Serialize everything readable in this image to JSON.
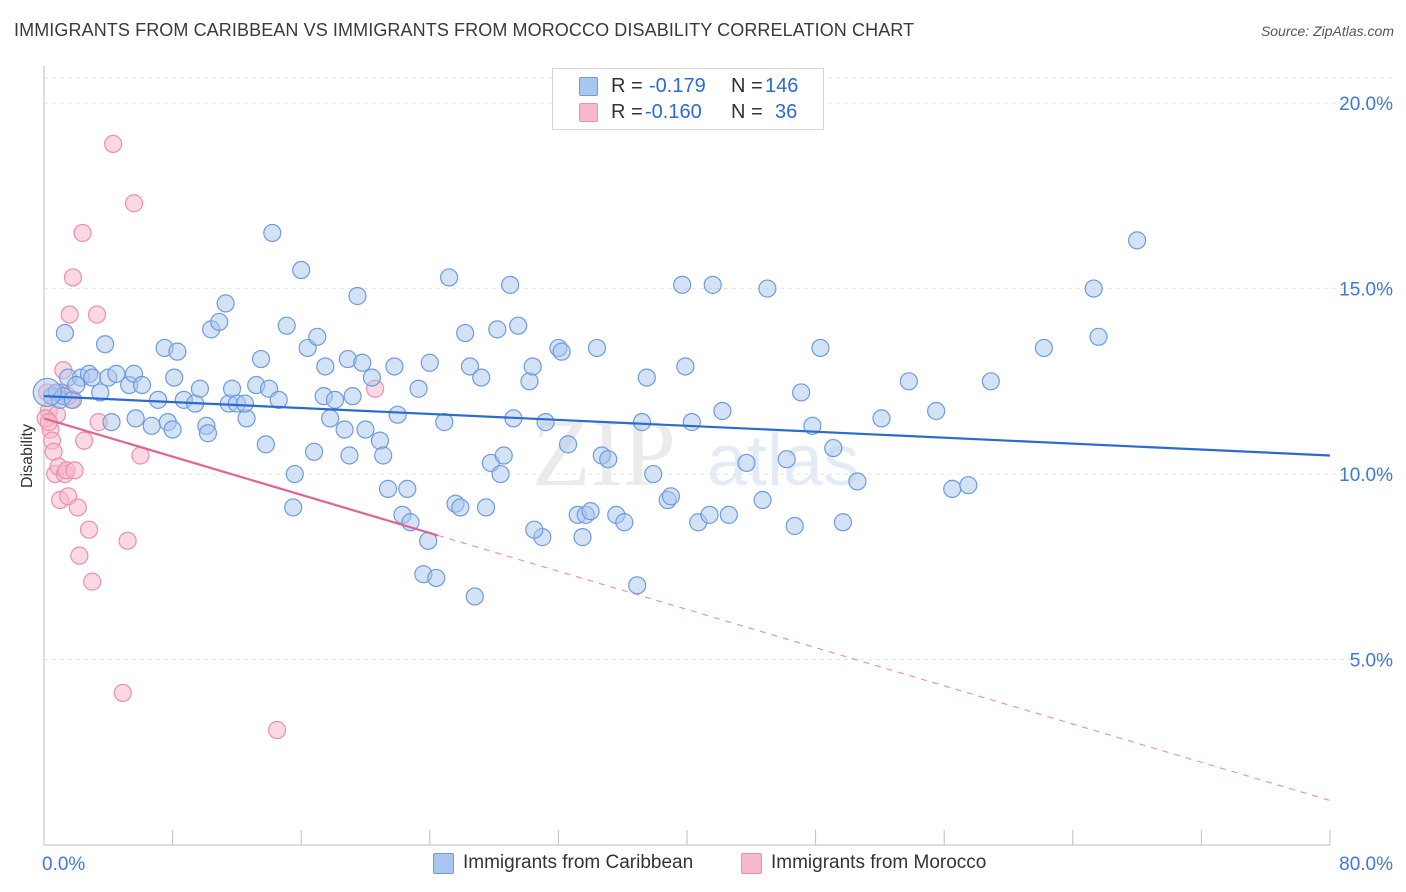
{
  "title": "IMMIGRANTS FROM CARIBBEAN VS IMMIGRANTS FROM MOROCCO DISABILITY CORRELATION CHART",
  "source": "Source: ZipAtlas.com",
  "watermark": {
    "zip": "ZIP",
    "atlas": "atlas"
  },
  "legend": {
    "r_label": "R =",
    "n_label": "N =",
    "rows": [
      {
        "r": "-0.179",
        "n": "146"
      },
      {
        "r": "-0.160",
        "n": "36"
      }
    ]
  },
  "colors": {
    "caribbean_fill": "#a9c6ee",
    "caribbean_stroke": "#6d9be0",
    "caribbean_line": "#2a6bd1",
    "morocco_fill": "#f7b8ca",
    "morocco_stroke": "#ec8fae",
    "morocco_line": "#e0658f",
    "tick_text": "#3f78d6"
  },
  "chart_data": {
    "type": "scatter",
    "title": "IMMIGRANTS FROM CARIBBEAN VS IMMIGRANTS FROM MOROCCO DISABILITY CORRELATION CHART",
    "xlabel": "",
    "ylabel": "Disability",
    "xlim": [
      0,
      80
    ],
    "ylim": [
      0,
      21
    ],
    "x_tick_labels": [
      "0.0%",
      "80.0%"
    ],
    "y_ticks": [
      5,
      10,
      15,
      20
    ],
    "y_tick_labels": [
      "5.0%",
      "10.0%",
      "15.0%",
      "20.0%"
    ],
    "grid": "horizontal dashed",
    "legend_position": "top-center",
    "series": [
      {
        "name": "Immigrants from Caribbean",
        "r": -0.179,
        "n": 146,
        "trend": {
          "x": [
            0,
            80
          ],
          "y": [
            12.1,
            10.5
          ],
          "style": "solid"
        },
        "points": [
          [
            0.5,
            12.1
          ],
          [
            0.8,
            12.2
          ],
          [
            1.0,
            12.0
          ],
          [
            1.2,
            12.1
          ],
          [
            1.5,
            12.6
          ],
          [
            1.8,
            12.0
          ],
          [
            2.3,
            12.6
          ],
          [
            2.8,
            12.7
          ],
          [
            3.0,
            12.6
          ],
          [
            1.3,
            13.8
          ],
          [
            4.0,
            12.6
          ],
          [
            4.5,
            12.7
          ],
          [
            3.8,
            13.5
          ],
          [
            4.2,
            11.4
          ],
          [
            5.3,
            12.4
          ],
          [
            5.6,
            12.7
          ],
          [
            6.1,
            12.4
          ],
          [
            5.7,
            11.5
          ],
          [
            6.7,
            11.3
          ],
          [
            7.1,
            12.0
          ],
          [
            7.5,
            13.4
          ],
          [
            7.7,
            11.4
          ],
          [
            8.1,
            12.6
          ],
          [
            8.3,
            13.3
          ],
          [
            8.7,
            12.0
          ],
          [
            9.4,
            11.9
          ],
          [
            9.7,
            12.3
          ],
          [
            10.1,
            11.3
          ],
          [
            10.2,
            11.1
          ],
          [
            10.4,
            13.9
          ],
          [
            10.9,
            14.1
          ],
          [
            11.3,
            14.6
          ],
          [
            11.5,
            11.9
          ],
          [
            11.7,
            12.3
          ],
          [
            12.0,
            11.9
          ],
          [
            12.6,
            11.5
          ],
          [
            13.2,
            12.4
          ],
          [
            13.5,
            13.1
          ],
          [
            13.8,
            10.8
          ],
          [
            14.0,
            12.3
          ],
          [
            14.2,
            16.5
          ],
          [
            14.6,
            12.0
          ],
          [
            15.1,
            14.0
          ],
          [
            15.5,
            9.1
          ],
          [
            15.6,
            10.0
          ],
          [
            16.0,
            15.5
          ],
          [
            16.4,
            13.4
          ],
          [
            16.8,
            10.6
          ],
          [
            17.0,
            13.7
          ],
          [
            17.4,
            12.1
          ],
          [
            17.5,
            12.9
          ],
          [
            17.8,
            11.5
          ],
          [
            18.1,
            12.0
          ],
          [
            18.7,
            11.2
          ],
          [
            18.9,
            13.1
          ],
          [
            19.2,
            12.1
          ],
          [
            19.5,
            14.8
          ],
          [
            19.8,
            13.0
          ],
          [
            20.0,
            11.2
          ],
          [
            20.4,
            12.6
          ],
          [
            20.9,
            10.9
          ],
          [
            21.1,
            10.5
          ],
          [
            21.4,
            9.6
          ],
          [
            21.8,
            12.9
          ],
          [
            22.0,
            11.6
          ],
          [
            22.3,
            8.9
          ],
          [
            22.6,
            9.6
          ],
          [
            22.8,
            8.7
          ],
          [
            23.3,
            12.3
          ],
          [
            23.6,
            7.3
          ],
          [
            23.9,
            8.2
          ],
          [
            24.4,
            7.2
          ],
          [
            24.9,
            11.4
          ],
          [
            25.2,
            15.3
          ],
          [
            25.6,
            9.2
          ],
          [
            25.9,
            9.1
          ],
          [
            26.2,
            13.8
          ],
          [
            26.5,
            12.9
          ],
          [
            26.8,
            6.7
          ],
          [
            27.2,
            12.6
          ],
          [
            27.5,
            9.1
          ],
          [
            27.8,
            10.3
          ],
          [
            28.2,
            13.9
          ],
          [
            28.4,
            10.0
          ],
          [
            28.6,
            10.5
          ],
          [
            29.0,
            15.1
          ],
          [
            29.2,
            11.5
          ],
          [
            29.5,
            14.0
          ],
          [
            30.2,
            12.5
          ],
          [
            30.4,
            12.9
          ],
          [
            31.0,
            8.3
          ],
          [
            31.2,
            11.4
          ],
          [
            32.0,
            13.4
          ],
          [
            32.2,
            13.3
          ],
          [
            32.6,
            10.8
          ],
          [
            33.2,
            8.9
          ],
          [
            33.5,
            8.3
          ],
          [
            33.7,
            8.9
          ],
          [
            34.4,
            13.4
          ],
          [
            34.7,
            10.5
          ],
          [
            35.1,
            10.4
          ],
          [
            35.6,
            8.9
          ],
          [
            36.1,
            8.7
          ],
          [
            36.9,
            7.0
          ],
          [
            37.2,
            11.4
          ],
          [
            37.5,
            12.6
          ],
          [
            37.9,
            10.0
          ],
          [
            38.8,
            9.3
          ],
          [
            39.7,
            15.1
          ],
          [
            39.9,
            12.9
          ],
          [
            40.3,
            11.4
          ],
          [
            40.7,
            8.7
          ],
          [
            41.4,
            8.9
          ],
          [
            42.2,
            11.7
          ],
          [
            42.6,
            8.9
          ],
          [
            43.7,
            10.3
          ],
          [
            44.7,
            9.3
          ],
          [
            46.2,
            10.4
          ],
          [
            46.7,
            8.6
          ],
          [
            47.1,
            12.2
          ],
          [
            47.8,
            11.3
          ],
          [
            48.3,
            13.4
          ],
          [
            49.1,
            10.7
          ],
          [
            49.7,
            8.7
          ],
          [
            50.6,
            9.8
          ],
          [
            52.1,
            11.5
          ],
          [
            53.8,
            12.5
          ],
          [
            55.5,
            11.7
          ],
          [
            56.5,
            9.6
          ],
          [
            57.5,
            9.7
          ],
          [
            58.9,
            12.5
          ],
          [
            62.2,
            13.4
          ],
          [
            65.3,
            15.0
          ],
          [
            65.6,
            13.7
          ],
          [
            68.0,
            16.3
          ],
          [
            45.0,
            15.0
          ],
          [
            41.6,
            15.1
          ],
          [
            39.0,
            9.4
          ],
          [
            34.0,
            9.0
          ],
          [
            30.5,
            8.5
          ],
          [
            24.0,
            13.0
          ],
          [
            19.0,
            10.5
          ],
          [
            12.5,
            11.9
          ],
          [
            8.0,
            11.2
          ],
          [
            3.5,
            12.2
          ],
          [
            2.0,
            12.4
          ]
        ]
      },
      {
        "name": "Immigrants from Morocco",
        "r": -0.16,
        "n": 36,
        "trend": {
          "x": [
            0,
            80
          ],
          "y": [
            11.5,
            1.2
          ],
          "solid_until_x": 24.5,
          "style": "solid-then-dashed"
        },
        "points": [
          [
            0.2,
            12.2
          ],
          [
            0.3,
            11.7
          ],
          [
            0.4,
            11.2
          ],
          [
            0.5,
            10.9
          ],
          [
            0.6,
            10.6
          ],
          [
            0.7,
            10.0
          ],
          [
            0.8,
            11.6
          ],
          [
            0.9,
            10.2
          ],
          [
            1.0,
            9.3
          ],
          [
            1.1,
            12.2
          ],
          [
            1.2,
            12.8
          ],
          [
            1.3,
            10.0
          ],
          [
            1.4,
            10.1
          ],
          [
            1.5,
            9.4
          ],
          [
            1.6,
            14.3
          ],
          [
            1.7,
            12.0
          ],
          [
            1.8,
            15.3
          ],
          [
            1.9,
            10.1
          ],
          [
            2.1,
            9.1
          ],
          [
            2.2,
            7.8
          ],
          [
            2.4,
            16.5
          ],
          [
            2.5,
            10.9
          ],
          [
            2.8,
            8.5
          ],
          [
            3.0,
            7.1
          ],
          [
            3.3,
            14.3
          ],
          [
            4.3,
            18.9
          ],
          [
            4.9,
            4.1
          ],
          [
            5.2,
            8.2
          ],
          [
            5.6,
            17.3
          ],
          [
            6.0,
            10.5
          ],
          [
            3.4,
            11.4
          ],
          [
            14.5,
            3.1
          ],
          [
            20.6,
            12.3
          ],
          [
            0.1,
            11.5
          ],
          [
            0.3,
            11.4
          ],
          [
            1.5,
            12.1
          ]
        ]
      }
    ]
  },
  "bottom_legend": [
    {
      "label": "Immigrants from Caribbean"
    },
    {
      "label": "Immigrants from Morocco"
    }
  ]
}
